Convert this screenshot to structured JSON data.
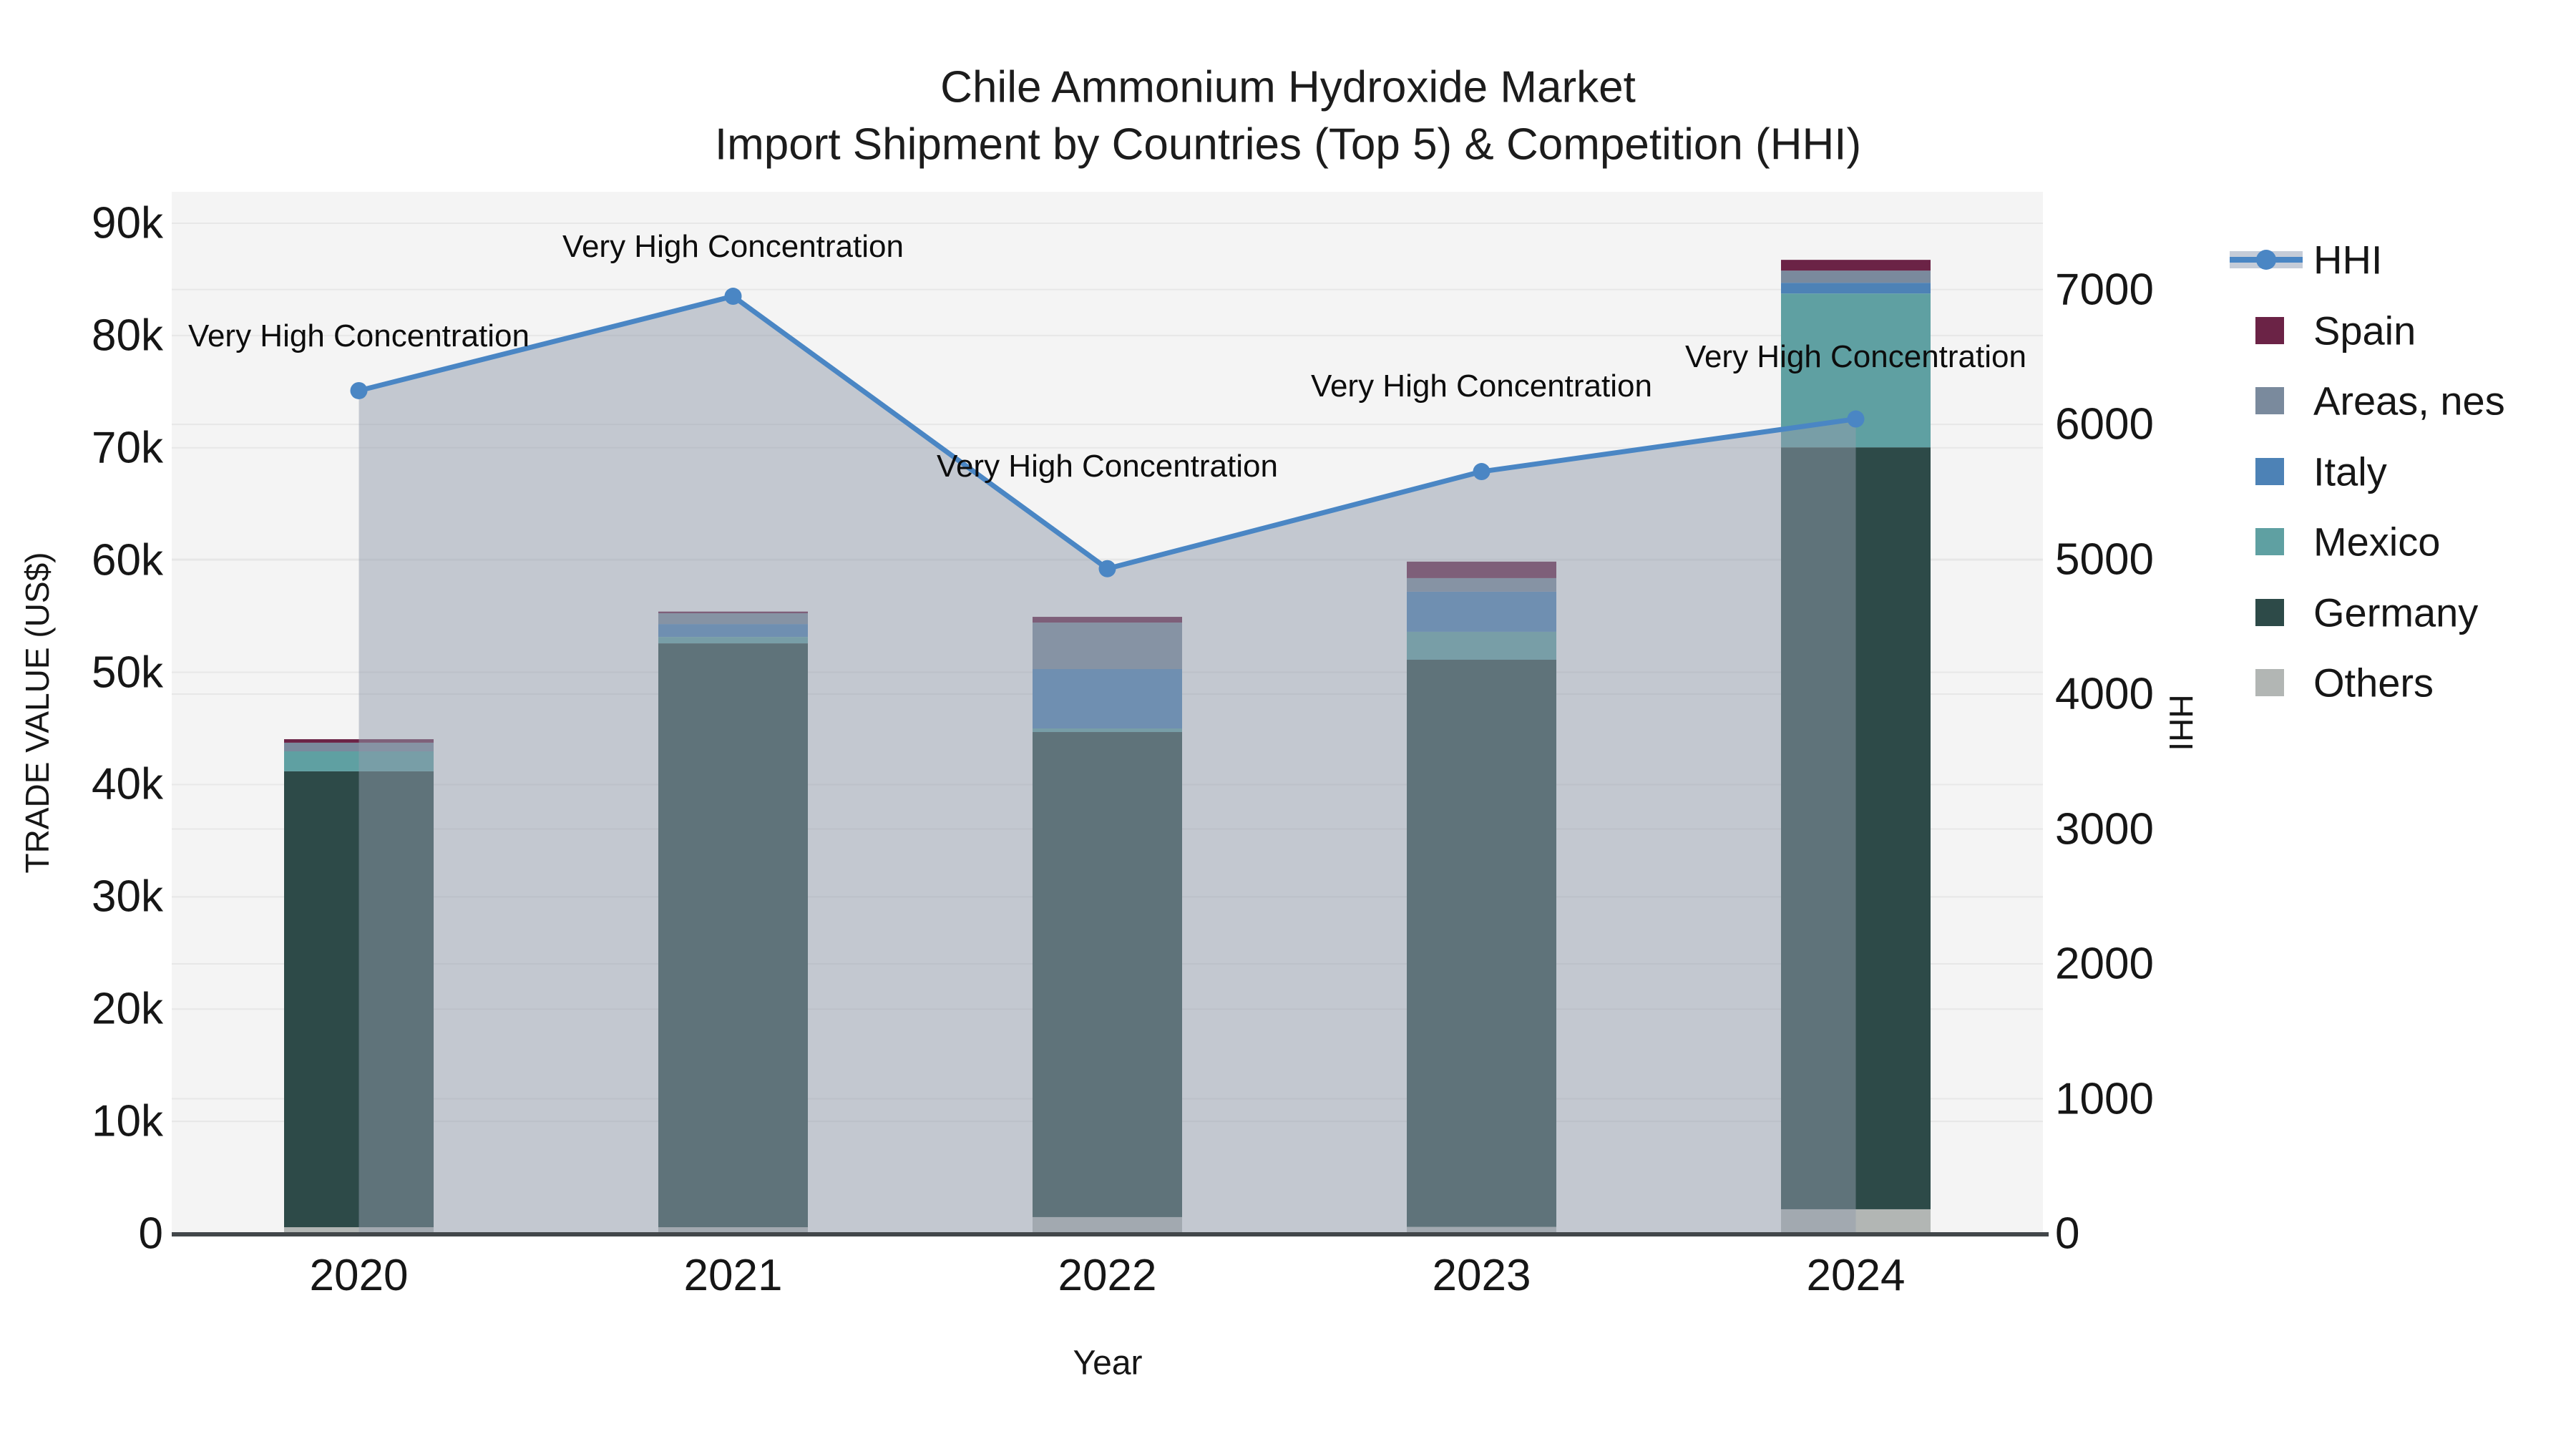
{
  "title": {
    "line1": "Chile Ammonium Hydroxide Market",
    "line2": "Import Shipment by Countries (Top 5) & Competition (HHI)"
  },
  "axes": {
    "x": {
      "title": "Year",
      "categories": [
        "2020",
        "2021",
        "2022",
        "2023",
        "2024"
      ]
    },
    "y_left": {
      "title": "TRADE VALUE (US$)",
      "tick_labels": [
        "0",
        "10k",
        "20k",
        "30k",
        "40k",
        "50k",
        "60k",
        "70k",
        "80k",
        "90k"
      ],
      "range": [
        0,
        90000
      ]
    },
    "y_right": {
      "title": "HHI",
      "tick_labels": [
        "0",
        "1000",
        "2000",
        "3000",
        "4000",
        "5000",
        "6000",
        "7000"
      ],
      "range": [
        0,
        7000
      ]
    }
  },
  "legend": [
    {
      "label": "HHI",
      "type": "line",
      "color": "#4a86c4",
      "band_color": "#c5ccd8"
    },
    {
      "label": "Spain",
      "type": "swatch",
      "color": "#6b2346"
    },
    {
      "label": "Areas, nes",
      "type": "swatch",
      "color": "#7a8a9d"
    },
    {
      "label": "Italy",
      "type": "swatch",
      "color": "#4d82b6"
    },
    {
      "label": "Mexico",
      "type": "swatch",
      "color": "#5fa0a2"
    },
    {
      "label": "Germany",
      "type": "swatch",
      "color": "#2d4a48"
    },
    {
      "label": "Others",
      "type": "swatch",
      "color": "#b2b6b4"
    }
  ],
  "annotations": [
    {
      "year": "2020",
      "text": "Very High Concentration"
    },
    {
      "year": "2021",
      "text": "Very High Concentration"
    },
    {
      "year": "2022",
      "text": "Very High Concentration"
    },
    {
      "year": "2023",
      "text": "Very High Concentration"
    },
    {
      "year": "2024",
      "text": "Very High Concentration"
    }
  ],
  "chart_data": {
    "type": "bar+line",
    "title": "Chile Ammonium Hydroxide Market — Import Shipment by Countries (Top 5) & Competition (HHI)",
    "categories": [
      "2020",
      "2021",
      "2022",
      "2023",
      "2024"
    ],
    "bar_value_unit": "US$",
    "stacked_bar_series": [
      {
        "name": "Others",
        "color": "#b2b6b4",
        "values": [
          570,
          570,
          1470,
          600,
          2170
        ]
      },
      {
        "name": "Germany",
        "color": "#2d4a48",
        "values": [
          40610,
          52010,
          43210,
          50520,
          67870
        ]
      },
      {
        "name": "Mexico",
        "color": "#5fa0a2",
        "values": [
          1780,
          570,
          320,
          2490,
          13700
        ]
      },
      {
        "name": "Italy",
        "color": "#4d82b6",
        "values": [
          0,
          1150,
          5290,
          3570,
          960
        ]
      },
      {
        "name": "Areas, nes",
        "color": "#7a8a9d",
        "values": [
          770,
          960,
          4140,
          1210,
          1080
        ]
      },
      {
        "name": "Spain",
        "color": "#6b2346",
        "values": [
          310,
          150,
          510,
          1470,
          960
        ]
      }
    ],
    "bar_totals": [
      44040,
      55410,
      54940,
      59860,
      86740
    ],
    "line_series": {
      "name": "HHI",
      "axis": "right",
      "values": [
        6250,
        6950,
        4930,
        5650,
        6040
      ],
      "color": "#4a86c4",
      "area_fill": "rgba(146,156,172,0.5)"
    },
    "ylim_left": [
      0,
      90000
    ],
    "ylim_right": [
      0,
      7000
    ],
    "grid": true,
    "legend_position": "right",
    "plot_bg": "#f4f4f4",
    "grid_color": "#e7e7e7",
    "axis_line_color": "#42474a"
  }
}
